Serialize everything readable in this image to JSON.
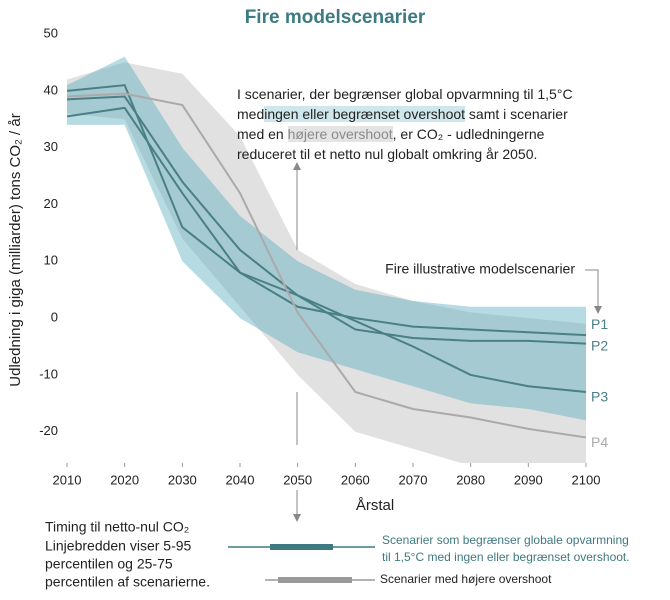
{
  "chart_data": {
    "type": "line",
    "title": "Fire modelscenarier",
    "xlabel": "Årstal",
    "ylabel": "Udledning i giga (milliarder) tons CO₂ / år",
    "x": [
      2010,
      2020,
      2030,
      2040,
      2050,
      2060,
      2070,
      2080,
      2090,
      2100
    ],
    "series": [
      {
        "name": "P1",
        "color": "#4a7f86",
        "values": [
          35.5,
          37,
          22,
          8,
          2,
          0,
          -1.5,
          -2,
          -2.5,
          -3
        ]
      },
      {
        "name": "P2",
        "color": "#4a7f86",
        "values": [
          38.5,
          39,
          24,
          12,
          4,
          -2,
          -3.5,
          -4,
          -4,
          -4.5
        ]
      },
      {
        "name": "P3",
        "color": "#4a7f86",
        "values": [
          40,
          41,
          16,
          8,
          4,
          -0.5,
          -5,
          -10,
          -12,
          -13
        ]
      },
      {
        "name": "P4",
        "color": "#aaaaaa",
        "values": [
          39,
          39.5,
          37.5,
          22,
          1,
          -13,
          -16,
          -17.5,
          -19.5,
          -21
        ]
      }
    ],
    "ranges": [
      {
        "color": "#bdbdbd",
        "upper": [
          42,
          45,
          43,
          32,
          12,
          6,
          3,
          1,
          0,
          -1
        ],
        "lower": [
          36,
          35,
          14,
          2,
          -10,
          -20,
          -23,
          -26,
          -26,
          -26
        ]
      },
      {
        "color": "#5fb0bf",
        "upper": [
          41,
          46,
          30,
          18,
          10,
          5,
          3,
          2,
          2,
          2
        ],
        "lower": [
          34,
          34,
          10,
          0,
          -6,
          -9,
          -12,
          -15,
          -16,
          -18
        ]
      }
    ],
    "xlim": [
      2010,
      2100
    ],
    "xticks": [
      2010,
      2020,
      2030,
      2040,
      2050,
      2060,
      2070,
      2080,
      2090,
      2100
    ],
    "ylim": [
      -25.5,
      50
    ],
    "yticks": [
      -20,
      -10,
      0,
      10,
      20,
      30,
      40,
      50
    ],
    "grid": false,
    "annotation": [
      "I scenarier, der begrænser global opvarmning til 1,5°C",
      "med",
      "ingen eller begrænset overshoot",
      "samt i scenarier",
      "med en",
      "højere overshoot",
      ", er CO₂ - udledningerne",
      "reduceret til et netto nul globalt omkring år 2050."
    ],
    "annotation2": "Fire illustrative modelscenarier",
    "legend_title": [
      "Timing til netto-nul CO₂",
      "Linjebredden viser 5-95",
      "percentilen og 25-75",
      "percentilen af scenarierne."
    ],
    "legend": [
      {
        "color": "#3f7a80",
        "label": [
          "Scenarier som begrænser globale opvarmning",
          "til 1,5°C med ingen eller begrænset overshoot."
        ]
      },
      {
        "color": "#9a9a9a",
        "label": [
          "Scenarier med højere overshoot"
        ]
      }
    ]
  }
}
